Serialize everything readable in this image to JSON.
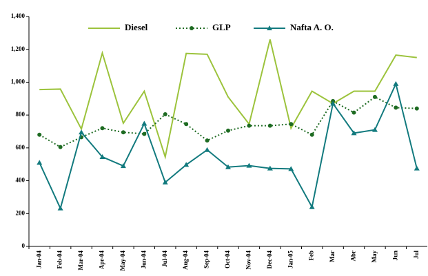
{
  "chart_data": {
    "type": "line",
    "categories": [
      "Jan-04",
      "Feb-04",
      "Mar-04",
      "Apr-04",
      "May-04",
      "Jun-04",
      "Jul-04",
      "Aug-04",
      "Sep-04",
      "Oct-04",
      "Nov-04",
      "Dec-04",
      "Jan-05",
      "Feb",
      "Mar",
      "Abr",
      "May",
      "Jun",
      "Jul"
    ],
    "series": [
      {
        "name": "Diesel",
        "color": "#9cc33c",
        "marker": "none",
        "dash": "solid",
        "values": [
          955,
          958,
          715,
          1178,
          750,
          945,
          545,
          1175,
          1170,
          910,
          745,
          1260,
          720,
          945,
          870,
          945,
          945,
          1165,
          1150
        ]
      },
      {
        "name": "GLP",
        "color": "#1e6b22",
        "marker": "circle",
        "dash": "dotted",
        "values": [
          680,
          605,
          665,
          720,
          695,
          685,
          805,
          745,
          645,
          705,
          735,
          735,
          745,
          680,
          885,
          815,
          910,
          845,
          840
        ]
      },
      {
        "name": "Nafta A. O.",
        "color": "#127a7e",
        "marker": "triangle",
        "dash": "solid",
        "values": [
          510,
          232,
          695,
          545,
          490,
          748,
          390,
          497,
          588,
          483,
          492,
          475,
          472,
          240,
          870,
          690,
          710,
          990,
          475
        ]
      }
    ],
    "ylim": [
      0,
      1400
    ],
    "yticks": [
      0,
      200,
      400,
      600,
      800,
      {
        "value": 1000,
        "label": "1,000"
      },
      {
        "value": 1200,
        "label": "1,200"
      },
      {
        "value": 1400,
        "label": "1,400"
      }
    ],
    "grid": false,
    "legend": "top"
  }
}
